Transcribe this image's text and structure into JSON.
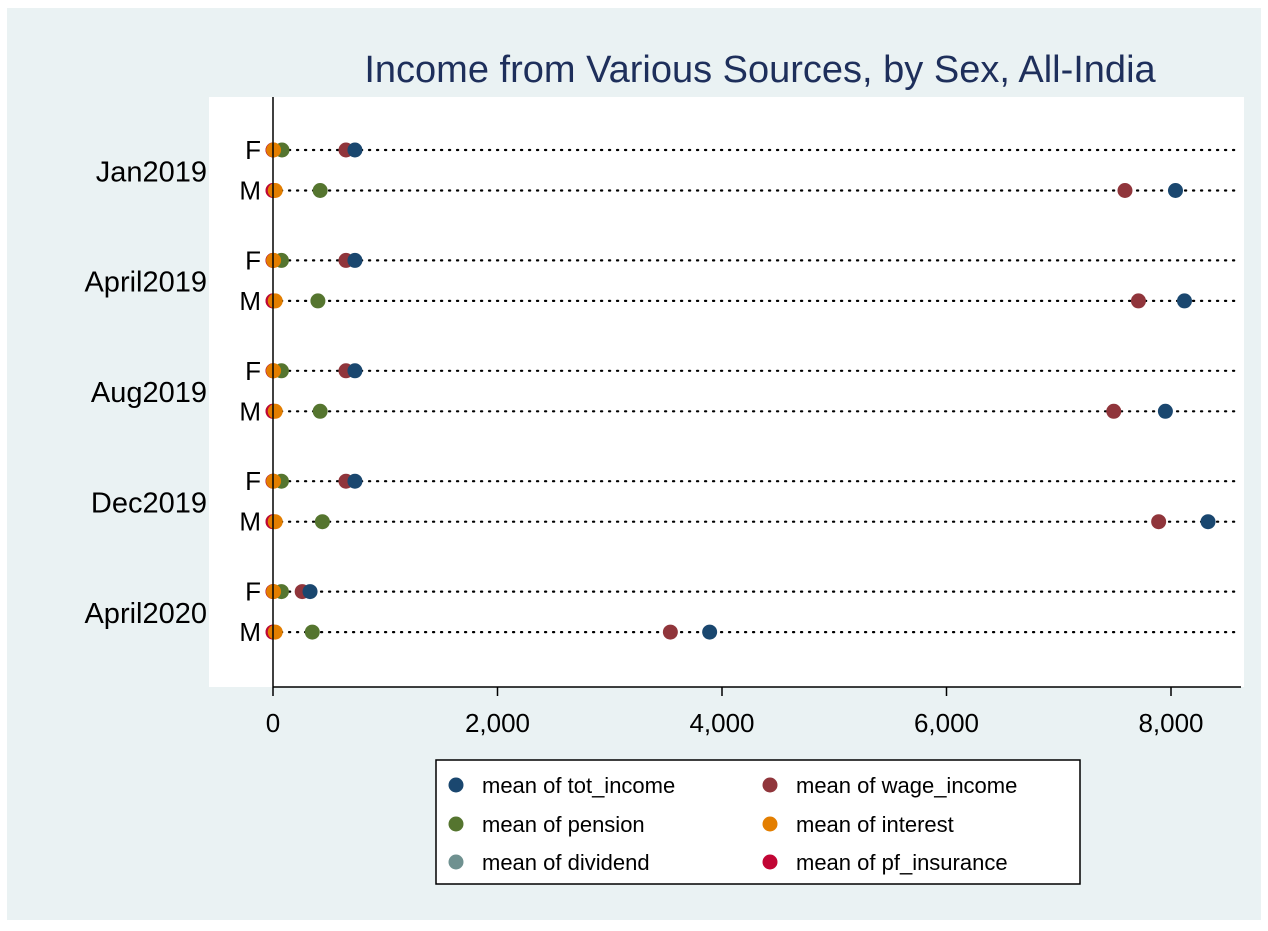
{
  "chart_data": {
    "type": "scatter",
    "title": "Income from Various Sources, by Sex, All-India",
    "xlim": [
      0,
      8600
    ],
    "x_ticks": [
      0,
      2000,
      4000,
      6000,
      8000
    ],
    "x_tick_labels": [
      "0",
      "2,000",
      "4,000",
      "6,000",
      "8,000"
    ],
    "grid": false,
    "legend_position": "bottom",
    "legend_columns": 2,
    "groups": [
      {
        "label": "Jan2019",
        "rows": [
          {
            "label": "F",
            "values": {
              "tot_income": 730,
              "wage_income": 650,
              "pension": 80,
              "interest": 5,
              "dividend": 0,
              "pf_insurance": 0
            }
          },
          {
            "label": "M",
            "values": {
              "tot_income": 8040,
              "wage_income": 7590,
              "pension": 420,
              "interest": 20,
              "dividend": 0,
              "pf_insurance": 0
            }
          }
        ]
      },
      {
        "label": "April2019",
        "rows": [
          {
            "label": "F",
            "values": {
              "tot_income": 730,
              "wage_income": 650,
              "pension": 75,
              "interest": 5,
              "dividend": 0,
              "pf_insurance": 0
            }
          },
          {
            "label": "M",
            "values": {
              "tot_income": 8120,
              "wage_income": 7710,
              "pension": 400,
              "interest": 20,
              "dividend": 0,
              "pf_insurance": 0
            }
          }
        ]
      },
      {
        "label": "Aug2019",
        "rows": [
          {
            "label": "F",
            "values": {
              "tot_income": 730,
              "wage_income": 650,
              "pension": 75,
              "interest": 5,
              "dividend": 0,
              "pf_insurance": 0
            }
          },
          {
            "label": "M",
            "values": {
              "tot_income": 7950,
              "wage_income": 7490,
              "pension": 420,
              "interest": 20,
              "dividend": 0,
              "pf_insurance": 0
            }
          }
        ]
      },
      {
        "label": "Dec2019",
        "rows": [
          {
            "label": "F",
            "values": {
              "tot_income": 730,
              "wage_income": 650,
              "pension": 75,
              "interest": 5,
              "dividend": 0,
              "pf_insurance": 0
            }
          },
          {
            "label": "M",
            "values": {
              "tot_income": 8330,
              "wage_income": 7890,
              "pension": 440,
              "interest": 20,
              "dividend": 0,
              "pf_insurance": 0
            }
          }
        ]
      },
      {
        "label": "April2020",
        "rows": [
          {
            "label": "F",
            "values": {
              "tot_income": 330,
              "wage_income": 260,
              "pension": 75,
              "interest": 5,
              "dividend": 0,
              "pf_insurance": 0
            }
          },
          {
            "label": "M",
            "values": {
              "tot_income": 3890,
              "wage_income": 3540,
              "pension": 350,
              "interest": 20,
              "dividend": 0,
              "pf_insurance": 0
            }
          }
        ]
      }
    ],
    "series": [
      {
        "key": "dividend",
        "name": "mean of dividend",
        "color": "#6f9190"
      },
      {
        "key": "pf_insurance",
        "name": "mean of pf_insurance",
        "color": "#c10534"
      },
      {
        "key": "pension",
        "name": "mean of pension",
        "color": "#55752f"
      },
      {
        "key": "interest",
        "name": "mean of interest",
        "color": "#e37e00"
      },
      {
        "key": "wage_income",
        "name": "mean of wage_income",
        "color": "#90353b"
      },
      {
        "key": "tot_income",
        "name": "mean of tot_income",
        "color": "#1a476f"
      }
    ],
    "legend_order": [
      "tot_income",
      "wage_income",
      "pension",
      "interest",
      "dividend",
      "pf_insurance"
    ],
    "colors": {
      "background": "#eaf2f3",
      "plot_background": "#ffffff",
      "title": "#1e2f5b",
      "axis": "#000000"
    }
  }
}
